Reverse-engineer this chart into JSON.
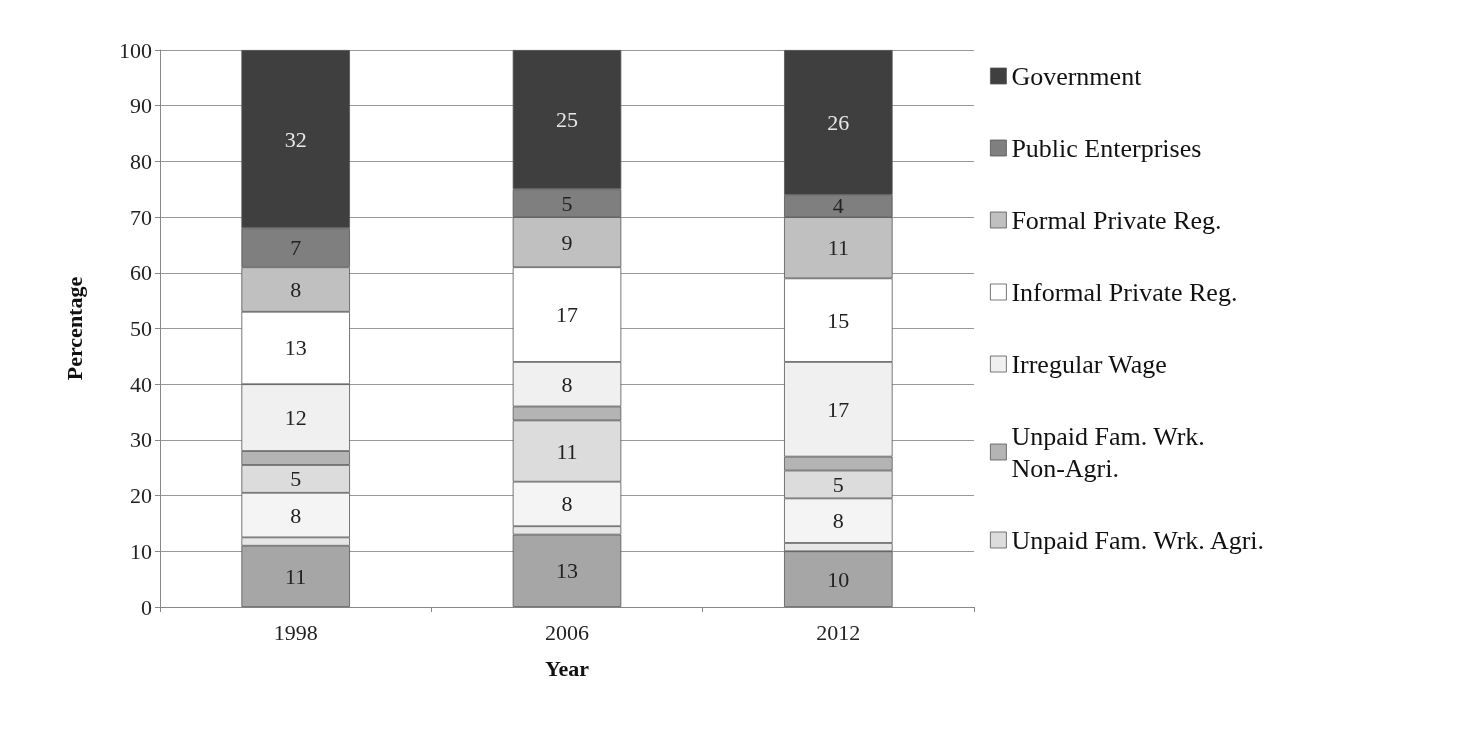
{
  "chart_data": {
    "type": "bar",
    "stacked": true,
    "xlabel": "Year",
    "ylabel": "Percentage",
    "categories": [
      "1998",
      "2006",
      "2012"
    ],
    "series": [
      {
        "color": "#a6a6a6",
        "values": [
          11,
          13,
          10
        ],
        "value_labels": [
          "11",
          "13",
          "10"
        ]
      },
      {
        "color": "#e6e6e6",
        "values": [
          1.5,
          1.5,
          1.5
        ],
        "value_labels": [
          null,
          null,
          null
        ]
      },
      {
        "color": "#f4f4f4",
        "values": [
          8,
          8,
          8
        ],
        "value_labels": [
          "8",
          "8",
          "8"
        ]
      },
      {
        "name": "Unpaid Fam. Wrk. Agri.",
        "color": "#dcdcdc",
        "values": [
          5,
          11,
          5
        ],
        "value_labels": [
          "5",
          "11",
          "5"
        ]
      },
      {
        "name": "Unpaid Fam. Wrk. Non-Agri.",
        "color": "#b4b4b4",
        "values": [
          2.5,
          2.5,
          2.5
        ],
        "value_labels": [
          null,
          null,
          null
        ]
      },
      {
        "name": "Irregular Wage",
        "color": "#f0f0f0",
        "values": [
          12,
          8,
          17
        ],
        "value_labels": [
          "12",
          "8",
          "17"
        ]
      },
      {
        "name": "Informal Private Reg.",
        "color": "#ffffff",
        "values": [
          13,
          17,
          15
        ],
        "value_labels": [
          "13",
          "17",
          "15"
        ]
      },
      {
        "name": "Formal Private Reg.",
        "color": "#c0c0c0",
        "values": [
          8,
          9,
          11
        ],
        "value_labels": [
          "8",
          "9",
          "11"
        ]
      },
      {
        "name": "Public Enterprises",
        "color": "#7f7f7f",
        "values": [
          7,
          5,
          4
        ],
        "value_labels": [
          "7",
          "5",
          "4"
        ]
      },
      {
        "name": "Government",
        "color": "#3f3f3f",
        "values": [
          32,
          25,
          26
        ],
        "value_labels": [
          "32",
          "25",
          "26"
        ]
      }
    ],
    "ylim": [
      0,
      100
    ],
    "yticks": [
      0,
      10,
      20,
      30,
      40,
      50,
      60,
      70,
      80,
      90,
      100
    ],
    "grid": "y",
    "legend": "right"
  }
}
